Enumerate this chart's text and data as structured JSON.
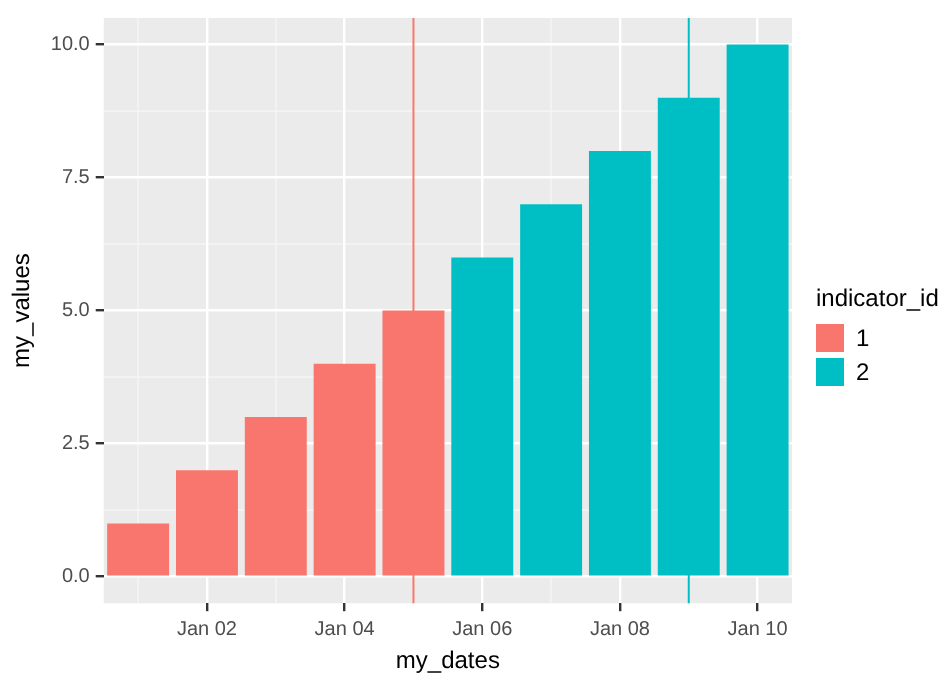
{
  "chart_data": {
    "type": "bar",
    "xlabel": "my_dates",
    "ylabel": "my_values",
    "legend_title": "indicator_id",
    "categories": [
      null,
      "Jan 02",
      null,
      "Jan 04",
      null,
      "Jan 06",
      null,
      "Jan 08",
      null,
      "Jan 10"
    ],
    "series": [
      {
        "name": "1",
        "color": "#f8766d",
        "values": [
          1,
          2,
          3,
          4,
          5,
          null,
          null,
          null,
          null,
          null
        ]
      },
      {
        "name": "2",
        "color": "#00bfc4",
        "values": [
          null,
          null,
          null,
          null,
          null,
          6,
          7,
          8,
          9,
          10
        ]
      }
    ],
    "ylim": [
      -0.5,
      10.5
    ],
    "yticks": [
      {
        "value": 0,
        "label": "0.0"
      },
      2.5,
      {
        "value": 5,
        "label": "5.0"
      },
      7.5,
      {
        "value": 10,
        "label": "10.0"
      }
    ],
    "grid": true,
    "legend": "right"
  }
}
